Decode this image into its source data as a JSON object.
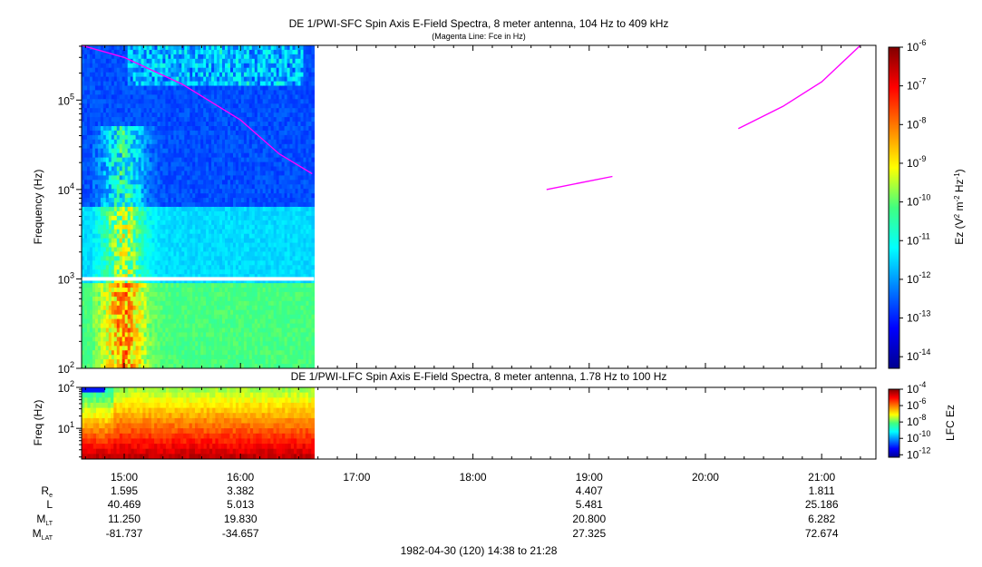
{
  "chart_data": [
    {
      "type": "heatmap",
      "title": "DE 1/PWI-SFC  Spin Axis E-Field Spectra, 8 meter antenna, 104 Hz to 409 kHz",
      "subtitle": "(Magenta Line: Fce in Hz)",
      "ylabel": "Frequency (Hz)",
      "yscale": "log",
      "ylim": [
        100,
        409000
      ],
      "y_ticks": [
        {
          "value": 100,
          "mantissa": "10",
          "exp": "2"
        },
        {
          "value": 1000,
          "mantissa": "10",
          "exp": "3"
        },
        {
          "value": 10000,
          "mantissa": "10",
          "exp": "4"
        },
        {
          "value": 100000,
          "mantissa": "10",
          "exp": "5"
        }
      ],
      "data_end_time": "16:38",
      "colorbar": {
        "label_pre": "Ez (V",
        "label_sup1": "2",
        "label_mid": " m",
        "label_sup2": "-2",
        "label_mid2": " Hz",
        "label_sup3": "-1",
        "label_post": ")",
        "range_log10": [
          -14.3,
          -6
        ],
        "ticks": [
          {
            "value": -6,
            "label": "-6"
          },
          {
            "value": -7,
            "label": "-7"
          },
          {
            "value": -8,
            "label": "-8"
          },
          {
            "value": -9,
            "label": "-9"
          },
          {
            "value": -10,
            "label": "-10"
          },
          {
            "value": -11,
            "label": "-11"
          },
          {
            "value": -12,
            "label": "-12"
          },
          {
            "value": -13,
            "label": "-13"
          },
          {
            "value": -14,
            "label": "-14"
          }
        ]
      },
      "fce_series": [
        {
          "name": "Fce",
          "color": "#ff00ff",
          "points": [
            [
              "14:38",
              409000
            ],
            [
              "15:00",
              300000
            ],
            [
              "15:30",
              150000
            ],
            [
              "16:00",
              60000
            ],
            [
              "16:20",
              25000
            ],
            [
              "16:37",
              15000
            ]
          ]
        },
        {
          "name": "Fce",
          "color": "#ff00ff",
          "points": [
            [
              "18:38",
              10000
            ],
            [
              "19:12",
              14000
            ]
          ]
        },
        {
          "name": "Fce",
          "color": "#ff00ff",
          "points": [
            [
              "20:17",
              48000
            ],
            [
              "20:40",
              85000
            ],
            [
              "21:00",
              160000
            ],
            [
              "21:20",
              409000
            ]
          ]
        }
      ]
    },
    {
      "type": "heatmap",
      "title": "DE 1/PWI-LFC  Spin Axis E-Field Spectra, 8 meter antenna, 1.78 Hz to 100 Hz",
      "ylabel": "Freq (Hz)",
      "yscale": "log",
      "ylim": [
        1.78,
        100
      ],
      "y_ticks": [
        {
          "value": 10,
          "mantissa": "10",
          "exp": "1"
        },
        {
          "value": 100,
          "mantissa": "10",
          "exp": "2"
        }
      ],
      "data_end_time": "16:38",
      "colorbar": {
        "label": "LFC Ez",
        "range_log10": [
          -12.3,
          -4
        ],
        "ticks": [
          {
            "value": -4,
            "label": "-4"
          },
          {
            "value": -6,
            "label": "-6"
          },
          {
            "value": -8,
            "label": "-8"
          },
          {
            "value": -10,
            "label": "-10"
          },
          {
            "value": -12,
            "label": "-12"
          }
        ]
      },
      "x_range": [
        "14:38",
        "21:28"
      ],
      "x_ticks": [
        "15:00",
        "16:00",
        "17:00",
        "18:00",
        "19:00",
        "20:00",
        "21:00"
      ]
    }
  ],
  "ephemeris": {
    "rows": [
      {
        "label_main": "R",
        "label_sub": "e"
      },
      {
        "label_main": "L",
        "label_sub": ""
      },
      {
        "label_main": "M",
        "label_sub": "LT"
      },
      {
        "label_main": "M",
        "label_sub": "LAT"
      }
    ],
    "columns": [
      {
        "time": "15:00",
        "values": [
          "1.595",
          "40.469",
          "11.250",
          "-81.737"
        ]
      },
      {
        "time": "16:00",
        "values": [
          "3.382",
          "5.013",
          "19.830",
          "-34.657"
        ]
      },
      {
        "time": "19:00",
        "values": [
          "4.407",
          "5.481",
          "20.800",
          "27.325"
        ]
      },
      {
        "time": "21:00",
        "values": [
          "1.811",
          "25.186",
          "6.282",
          "72.674"
        ]
      }
    ]
  },
  "footer": "1982-04-30 (120) 14:38 to 21:28"
}
